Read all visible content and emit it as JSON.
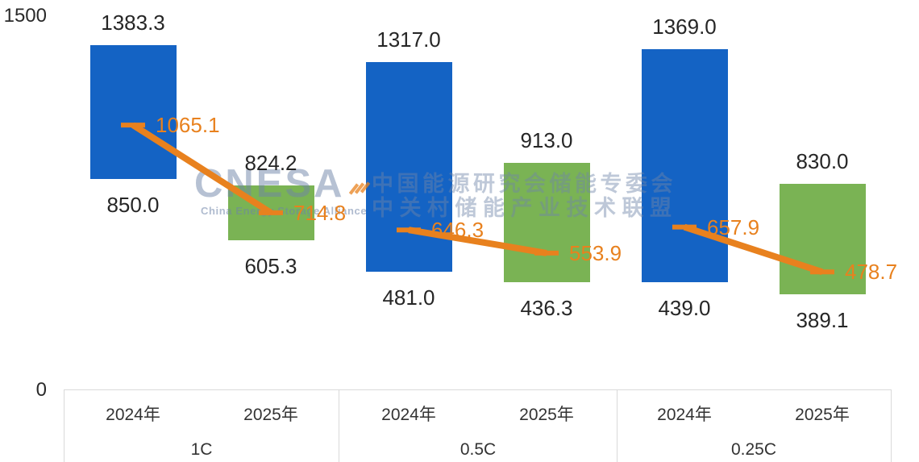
{
  "chart_data": {
    "type": "bar",
    "subtype": "floating-range-bars-with-average-line-overlay",
    "title": "",
    "xlabel": "",
    "ylabel": "",
    "ylim": [
      0,
      1500
    ],
    "y_ticks_shown": [
      "1500",
      "0"
    ],
    "grid": false,
    "legend_position": "none",
    "value_decimals": 1,
    "groups": [
      {
        "label": "1C",
        "points": [
          {
            "year": "2024年",
            "high": 1383.3,
            "low": 850.0,
            "avg": 1065.1
          },
          {
            "year": "2025年",
            "high": 824.2,
            "low": 605.3,
            "avg": 714.8
          }
        ]
      },
      {
        "label": "0.5C",
        "points": [
          {
            "year": "2024年",
            "high": 1317.0,
            "low": 481.0,
            "avg": 646.3
          },
          {
            "year": "2025年",
            "high": 913.0,
            "low": 436.3,
            "avg": 553.9
          }
        ]
      },
      {
        "label": "0.25C",
        "points": [
          {
            "year": "2024年",
            "high": 1369.0,
            "low": 439.0,
            "avg": 657.9
          },
          {
            "year": "2025年",
            "low": 389.1,
            "high": 830.0,
            "avg": 478.7
          }
        ]
      }
    ],
    "series_colors": {
      "bar_2024": "#1463C4",
      "bar_2025": "#7AB354",
      "avg_line": "#E8811E"
    }
  },
  "y_axis": {
    "top_label": "1500",
    "zero_label": "0"
  },
  "watermark": {
    "logo_text": "CNESA",
    "logo_subtitle": "China Energy Storage Alliance",
    "cn_line1": "中国能源研究会储能专委会",
    "cn_line2": "中关村储能产业技术联盟"
  }
}
